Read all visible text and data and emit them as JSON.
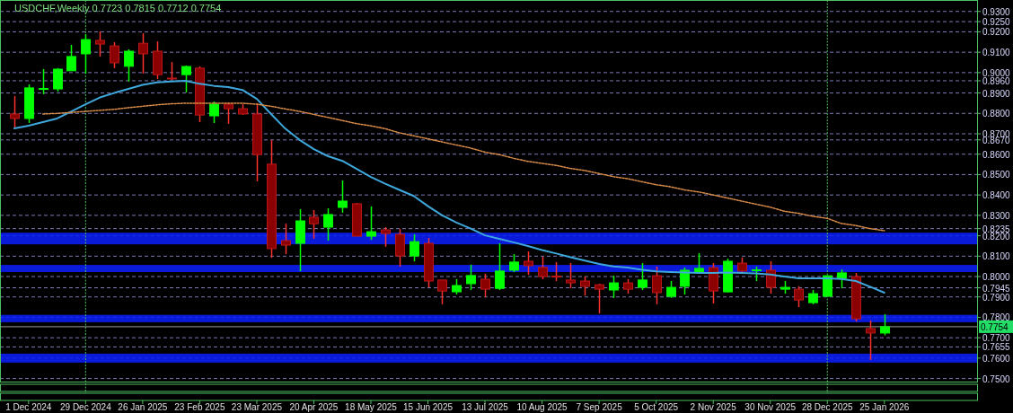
{
  "chart_data": {
    "type": "candlestick",
    "title": "USDCHF,Weekly  0.7723 0.7815 0.7712 0.7754",
    "categories": [
      null,
      "1 Dec 2024",
      null,
      null,
      null,
      "29 Dec 2024",
      null,
      null,
      null,
      "26 Jan 2025",
      null,
      null,
      null,
      "23 Feb 2025",
      null,
      null,
      null,
      "23 Mar 2025",
      null,
      null,
      null,
      "20 Apr 2025",
      null,
      null,
      null,
      "18 May 2025",
      null,
      null,
      null,
      "15 Jun 2025",
      null,
      null,
      null,
      "13 Jul 2025",
      null,
      null,
      null,
      "10 Aug 2025",
      null,
      null,
      null,
      "7 Sep 2025",
      null,
      null,
      null,
      "5 Oct 2025",
      null,
      null,
      null,
      "2 Nov 2025",
      null,
      null,
      null,
      "30 Nov 2025",
      null,
      null,
      null,
      "28 Dec 2025",
      null,
      null,
      null,
      "25 Jan 2026",
      null,
      null,
      null,
      null,
      null,
      null
    ],
    "ohlc": [
      [
        0.8797,
        0.8885,
        0.8731,
        0.8775
      ],
      [
        0.8775,
        0.8942,
        0.8753,
        0.8925
      ],
      [
        0.892,
        0.9017,
        0.8894,
        0.8922
      ],
      [
        0.892,
        0.9022,
        0.8907,
        0.9017
      ],
      [
        0.9009,
        0.9136,
        0.9009,
        0.9079
      ],
      [
        0.9092,
        0.9188,
        0.8995,
        0.9162
      ],
      [
        0.9158,
        0.9202,
        0.9079,
        0.914
      ],
      [
        0.9131,
        0.9149,
        0.9022,
        0.9048
      ],
      [
        0.9031,
        0.9114,
        0.8956,
        0.9105
      ],
      [
        0.9144,
        0.9193,
        0.8995,
        0.9092
      ],
      [
        0.9105,
        0.9153,
        0.8968,
        0.899
      ],
      [
        0.8973,
        0.9052,
        0.8964,
        0.897
      ],
      [
        0.899,
        0.9035,
        0.8903,
        0.903
      ],
      [
        0.9022,
        0.903,
        0.8757,
        0.8792
      ],
      [
        0.8788,
        0.8858,
        0.8753,
        0.8845
      ],
      [
        0.8845,
        0.885,
        0.8749,
        0.8823
      ],
      [
        0.8823,
        0.8845,
        0.8793,
        0.8797
      ],
      [
        0.8797,
        0.885,
        0.8467,
        0.8598
      ],
      [
        0.8551,
        0.8669,
        0.8092,
        0.8137
      ],
      [
        0.8176,
        0.8259,
        0.811,
        0.8154
      ],
      [
        0.8163,
        0.833,
        0.8026,
        0.8273
      ],
      [
        0.8291,
        0.8326,
        0.8185,
        0.8259
      ],
      [
        0.8242,
        0.8335,
        0.8176,
        0.8304
      ],
      [
        0.8339,
        0.8471,
        0.8313,
        0.837
      ],
      [
        0.8357,
        0.8361,
        0.8198,
        0.8198
      ],
      [
        0.8198,
        0.8344,
        0.818,
        0.822
      ],
      [
        0.8229,
        0.8242,
        0.8146,
        0.8211
      ],
      [
        0.8207,
        0.8233,
        0.8049,
        0.8101
      ],
      [
        0.8101,
        0.8207,
        0.8075,
        0.8171
      ],
      [
        0.8163,
        0.8189,
        0.7947,
        0.7978
      ],
      [
        0.7983,
        0.7983,
        0.7864,
        0.7929
      ],
      [
        0.7925,
        0.7987,
        0.7912,
        0.7956
      ],
      [
        0.7965,
        0.8058,
        0.7934,
        0.8005
      ],
      [
        0.7987,
        0.8014,
        0.7899,
        0.7938
      ],
      [
        0.7942,
        0.8163,
        0.7934,
        0.8027
      ],
      [
        0.8031,
        0.811,
        0.8022,
        0.8071
      ],
      [
        0.8075,
        0.8123,
        0.8009,
        0.8053
      ],
      [
        0.8045,
        0.8097,
        0.7987,
        0.8
      ],
      [
        0.8002,
        0.8071,
        0.7978,
        0.7998
      ],
      [
        0.7983,
        0.8066,
        0.7943,
        0.7969
      ],
      [
        0.7978,
        0.8,
        0.7907,
        0.7952
      ],
      [
        0.796,
        0.7965,
        0.7819,
        0.7938
      ],
      [
        0.7934,
        0.8004,
        0.7895,
        0.7969
      ],
      [
        0.7969,
        0.7987,
        0.7916,
        0.7938
      ],
      [
        0.7947,
        0.8066,
        0.7934,
        0.7983
      ],
      [
        0.8004,
        0.8049,
        0.7864,
        0.7921
      ],
      [
        0.7903,
        0.7978,
        0.7895,
        0.7947
      ],
      [
        0.7952,
        0.8044,
        0.7912,
        0.8031
      ],
      [
        0.8022,
        0.8115,
        0.8018,
        0.804
      ],
      [
        0.8044,
        0.8066,
        0.7868,
        0.7929
      ],
      [
        0.7925,
        0.8088,
        0.7921,
        0.8075
      ],
      [
        0.8066,
        0.8093,
        0.8018,
        0.8027
      ],
      [
        0.8029,
        0.8049,
        0.7978,
        0.8033
      ],
      [
        0.8031,
        0.8075,
        0.7916,
        0.7947
      ],
      [
        0.7938,
        0.7978,
        0.7916,
        0.7947
      ],
      [
        0.7938,
        0.7952,
        0.785,
        0.7885
      ],
      [
        0.7872,
        0.7934,
        0.7864,
        0.7916
      ],
      [
        0.7903,
        0.8004,
        0.7903,
        0.8004
      ],
      [
        0.7991,
        0.8035,
        0.7943,
        0.8018
      ],
      [
        0.8,
        0.8018,
        0.778,
        0.7793
      ],
      [
        0.7745,
        0.7784,
        0.7591,
        0.7723
      ],
      [
        0.7723,
        0.7815,
        0.7712,
        0.7754
      ],
      null,
      null,
      null,
      null,
      null,
      null
    ],
    "series": [
      {
        "type": "line",
        "color": "#3ea8dc",
        "values": [
          0.8726,
          0.874,
          0.8757,
          0.8775,
          0.881,
          0.8845,
          0.8878,
          0.89,
          0.892,
          0.894,
          0.8952,
          0.8956,
          0.896,
          0.8945,
          0.8935,
          0.8929,
          0.8915,
          0.8871,
          0.8797,
          0.8725,
          0.867,
          0.8625,
          0.859,
          0.8567,
          0.8528,
          0.8488,
          0.8455,
          0.8425,
          0.8395,
          0.8345,
          0.83,
          0.8265,
          0.8235,
          0.8202,
          0.8185,
          0.8168,
          0.815,
          0.813,
          0.8113,
          0.8095,
          0.8078,
          0.8062,
          0.805,
          0.8044,
          0.8033,
          0.8025,
          0.8022,
          0.802,
          0.8018,
          0.8018,
          0.802,
          0.8018,
          0.8015,
          0.801,
          0.8,
          0.7991,
          0.7991,
          0.7991,
          0.7988,
          0.7978,
          0.795,
          0.7921,
          null,
          null,
          null,
          null,
          null,
          null
        ]
      },
      {
        "type": "line",
        "color": "#d98c4a",
        "line_style": "dashed",
        "values": [
          null,
          null,
          0.8797,
          0.88,
          0.8805,
          0.881,
          0.8815,
          0.882,
          0.8828,
          0.8835,
          0.8842,
          0.8847,
          0.885,
          0.885,
          0.885,
          0.885,
          0.885,
          0.8845,
          0.8835,
          0.8822,
          0.881,
          0.8795,
          0.878,
          0.8765,
          0.875,
          0.8739,
          0.8725,
          0.8705,
          0.869,
          0.8675,
          0.866,
          0.8645,
          0.863,
          0.861,
          0.8598,
          0.858,
          0.8565,
          0.8555,
          0.8545,
          0.853,
          0.852,
          0.8505,
          0.849,
          0.848,
          0.8465,
          0.845,
          0.844,
          0.8425,
          0.8415,
          0.84,
          0.8385,
          0.837,
          0.8355,
          0.834,
          0.832,
          0.831,
          0.8295,
          0.8285,
          0.826,
          0.825,
          0.8235,
          0.8225,
          null,
          null,
          null,
          null,
          null,
          null
        ]
      }
    ],
    "ylim": [
      0.7485,
      0.9356
    ],
    "yticks": [
      {
        "value": 0.93,
        "label": "0.9300"
      },
      {
        "value": 0.925,
        "label": "0.9250"
      },
      {
        "value": 0.92,
        "label": "0.9200"
      },
      {
        "value": 0.91,
        "label": "0.9100"
      },
      {
        "value": 0.9,
        "label": "0.9000"
      },
      {
        "value": 0.896,
        "label": "0.8960"
      },
      {
        "value": 0.89,
        "label": "0.8900"
      },
      {
        "value": 0.88,
        "label": "0.8800"
      },
      {
        "value": 0.87,
        "label": "0.8700"
      },
      {
        "value": 0.867,
        "label": "0.8670"
      },
      {
        "value": 0.86,
        "label": "0.8600"
      },
      {
        "value": 0.85,
        "label": "0.8500"
      },
      {
        "value": 0.84,
        "label": "0.8400"
      },
      {
        "value": 0.83,
        "label": "0.8300"
      },
      {
        "value": 0.8235,
        "label": "0.8235"
      },
      {
        "value": 0.82,
        "label": "0.8200"
      },
      {
        "value": 0.81,
        "label": "0.8100"
      },
      {
        "value": 0.8,
        "label": "0.8000"
      },
      {
        "value": 0.7945,
        "label": "0.7945"
      },
      {
        "value": 0.79,
        "label": "0.7900"
      },
      {
        "value": 0.78,
        "label": "0.7800"
      },
      {
        "value": 0.77,
        "label": "0.7700"
      },
      {
        "value": 0.7655,
        "label": "0.7655"
      },
      {
        "value": 0.76,
        "label": "0.7600"
      },
      {
        "value": 0.75,
        "label": "0.7500"
      }
    ],
    "grid": "y",
    "bands": [
      {
        "axis": "y",
        "from": 0.8158,
        "to": 0.8215,
        "color": "#0a1eff"
      },
      {
        "axis": "y",
        "from": 0.7776,
        "to": 0.7812,
        "color": "#0a1eff"
      },
      {
        "axis": "y",
        "from": 0.8022,
        "to": 0.8057,
        "color": "#0a1eff"
      },
      {
        "axis": "y",
        "from": 0.7578,
        "to": 0.7622,
        "color": "#0a1eff"
      }
    ],
    "ref_lines": [
      {
        "axis": "x",
        "value": "29 Dec 2024",
        "color": "#4fc060",
        "line_style": "dashed"
      },
      {
        "axis": "x",
        "value": "28 Dec 2025",
        "color": "#4fc060",
        "line_style": "dashed"
      },
      {
        "axis": "y",
        "value": 0.7754,
        "label": "0.7754",
        "color": "#9a9a9a"
      }
    ]
  }
}
